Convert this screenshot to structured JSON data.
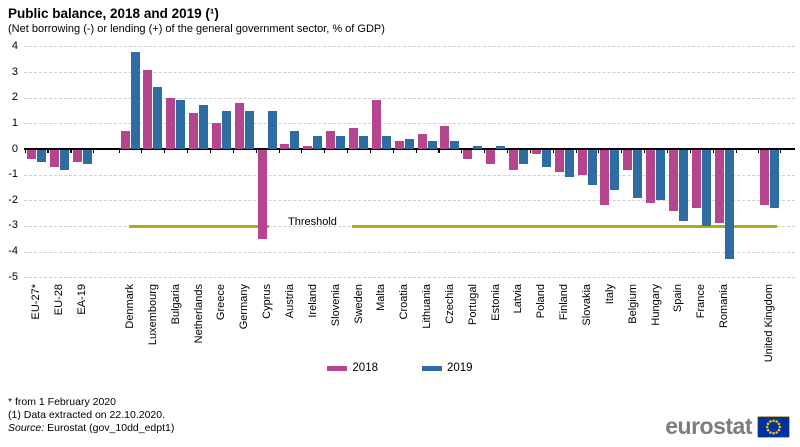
{
  "title": "Public balance, 2018 and 2019 (¹)",
  "subtitle": "(Net borrowing (-) or lending (+) of the general government sector, % of GDP)",
  "footnotes": [
    "* from 1 February 2020",
    "(1) Data extracted on 22.10.2020."
  ],
  "source": {
    "prefix": "Source:",
    "text": " Eurostat (gov_10dd_edpt1)"
  },
  "logo": {
    "text": "eurostat"
  },
  "colors": {
    "series_2018": "#b5458f",
    "series_2019": "#2d6da3",
    "threshold": "#a9ab1b",
    "grid": "#cfcfcf",
    "zero_axis": "#000000",
    "logo_gray": "#7d7d7d",
    "flag_blue": "#003399",
    "flag_stars": "#ffcc00"
  },
  "chart_data": {
    "type": "bar",
    "title": "Public balance, 2018 and 2019",
    "ylabel": "% of GDP",
    "ylim": [
      -5,
      4
    ],
    "yticks": [
      4,
      3,
      2,
      1,
      0,
      -1,
      -2,
      -3,
      -4,
      -5
    ],
    "grid": "horizontal-dashed",
    "legend_position": "bottom-center",
    "group_breaks_after": [
      "EA-19",
      "Romania"
    ],
    "categories": [
      "EU-27*",
      "EU-28",
      "EA-19",
      "Denmark",
      "Luxembourg",
      "Bulgaria",
      "Netherlands",
      "Greece",
      "Germany",
      "Cyprus",
      "Austria",
      "Ireland",
      "Slovenia",
      "Sweden",
      "Malta",
      "Croatia",
      "Lithuania",
      "Czechia",
      "Portugal",
      "Estonia",
      "Latvia",
      "Poland",
      "Finland",
      "Slovakia",
      "Italy",
      "Belgium",
      "Hungary",
      "Spain",
      "France",
      "Romania",
      "United Kingdom"
    ],
    "series": [
      {
        "name": "2018",
        "color": "#b5458f",
        "values": [
          -0.4,
          -0.7,
          -0.5,
          0.7,
          3.1,
          2.0,
          1.4,
          1.0,
          1.8,
          -3.5,
          0.2,
          0.1,
          0.7,
          0.8,
          1.9,
          0.3,
          0.6,
          0.9,
          -0.4,
          -0.6,
          -0.8,
          -0.2,
          -0.9,
          -1.0,
          -2.2,
          -0.8,
          -2.1,
          -2.4,
          -2.3,
          -2.9,
          -2.2
        ]
      },
      {
        "name": "2019",
        "color": "#2d6da3",
        "values": [
          -0.5,
          -0.8,
          -0.6,
          3.8,
          2.4,
          1.9,
          1.7,
          1.5,
          1.5,
          1.5,
          0.7,
          0.5,
          0.5,
          0.5,
          0.5,
          0.4,
          0.3,
          0.3,
          0.1,
          0.1,
          -0.6,
          -0.7,
          -1.1,
          -1.4,
          -1.6,
          -1.9,
          -2.0,
          -2.8,
          -3.0,
          -4.3,
          -2.3
        ]
      }
    ],
    "threshold": {
      "value": -3,
      "label": "Threshold"
    }
  }
}
